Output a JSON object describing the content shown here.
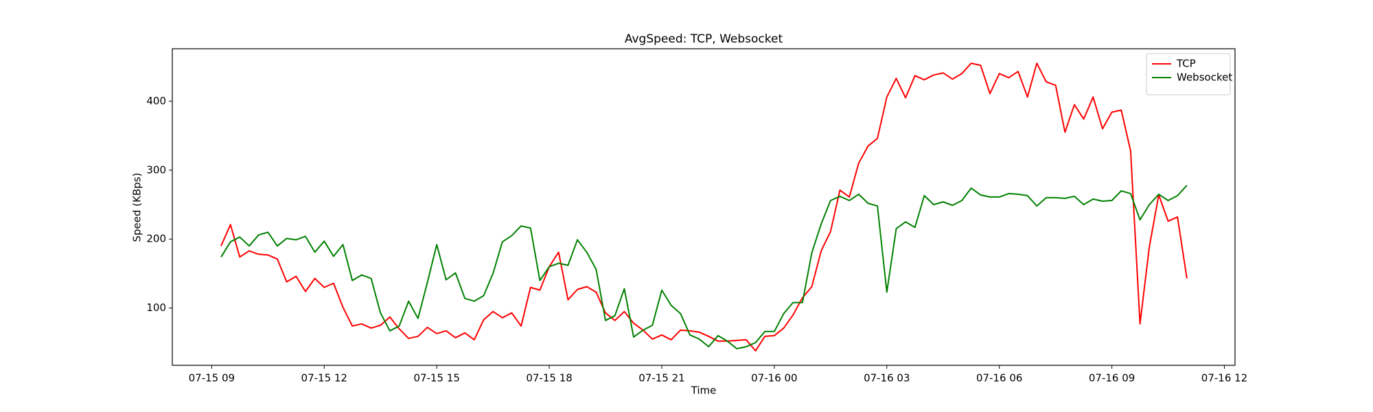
{
  "chart_data": {
    "type": "line",
    "title": "AvgSpeed: TCP, Websocket",
    "x_label": "Time",
    "y_label": "Speed (KBps)",
    "x": [
      "07-15 09:15",
      "07-15 09:30",
      "07-15 09:45",
      "07-15 10:00",
      "07-15 10:15",
      "07-15 10:30",
      "07-15 10:45",
      "07-15 11:00",
      "07-15 11:15",
      "07-15 11:30",
      "07-15 11:45",
      "07-15 12:00",
      "07-15 12:15",
      "07-15 12:30",
      "07-15 12:45",
      "07-15 13:00",
      "07-15 13:15",
      "07-15 13:30",
      "07-15 13:45",
      "07-15 14:00",
      "07-15 14:15",
      "07-15 14:30",
      "07-15 14:45",
      "07-15 15:00",
      "07-15 15:15",
      "07-15 15:30",
      "07-15 15:45",
      "07-15 16:00",
      "07-15 16:15",
      "07-15 16:30",
      "07-15 16:45",
      "07-15 17:00",
      "07-15 17:15",
      "07-15 17:30",
      "07-15 17:45",
      "07-15 18:00",
      "07-15 18:15",
      "07-15 18:30",
      "07-15 18:45",
      "07-15 19:00",
      "07-15 19:15",
      "07-15 19:30",
      "07-15 19:45",
      "07-15 20:00",
      "07-15 20:15",
      "07-15 20:30",
      "07-15 20:45",
      "07-15 21:00",
      "07-15 21:15",
      "07-15 21:30",
      "07-15 21:45",
      "07-15 22:00",
      "07-15 22:15",
      "07-15 22:30",
      "07-15 22:45",
      "07-15 23:00",
      "07-15 23:15",
      "07-15 23:30",
      "07-15 23:45",
      "07-16 00:00",
      "07-16 00:15",
      "07-16 00:30",
      "07-16 00:45",
      "07-16 01:00",
      "07-16 01:15",
      "07-16 01:30",
      "07-16 01:45",
      "07-16 02:00",
      "07-16 02:15",
      "07-16 02:30",
      "07-16 02:45",
      "07-16 03:00",
      "07-16 03:15",
      "07-16 03:30",
      "07-16 03:45",
      "07-16 04:00",
      "07-16 04:15",
      "07-16 04:30",
      "07-16 04:45",
      "07-16 05:00",
      "07-16 05:15",
      "07-16 05:30",
      "07-16 05:45",
      "07-16 06:00",
      "07-16 06:15",
      "07-16 06:30",
      "07-16 06:45",
      "07-16 07:00",
      "07-16 07:15",
      "07-16 07:30",
      "07-16 07:45",
      "07-16 08:00",
      "07-16 08:15",
      "07-16 08:30",
      "07-16 08:45",
      "07-16 09:00",
      "07-16 09:15",
      "07-16 09:30",
      "07-16 09:45",
      "07-16 10:00",
      "07-16 10:15",
      "07-16 10:30",
      "07-16 10:45",
      "07-16 11:00"
    ],
    "series": [
      {
        "name": "TCP",
        "color": "red",
        "values": [
          190,
          221,
          174,
          183,
          178,
          177,
          171,
          138,
          146,
          124,
          143,
          130,
          136,
          101,
          74,
          77,
          71,
          75,
          87,
          70,
          56,
          59,
          72,
          63,
          67,
          57,
          64,
          54,
          83,
          95,
          86,
          93,
          74,
          130,
          126,
          160,
          181,
          112,
          127,
          131,
          123,
          93,
          82,
          95,
          78,
          68,
          55,
          61,
          54,
          68,
          67,
          65,
          59,
          52,
          52,
          53,
          54,
          38,
          59,
          60,
          71,
          90,
          115,
          131,
          183,
          211,
          271,
          261,
          310,
          335,
          346,
          406,
          433,
          405,
          437,
          431,
          438,
          441,
          432,
          440,
          455,
          452,
          411,
          440,
          434,
          443,
          406,
          455,
          428,
          423,
          355,
          395,
          374,
          406,
          360,
          384,
          387,
          328,
          77,
          189,
          264,
          226,
          232,
          143
        ]
      },
      {
        "name": "Websocket",
        "color": "green",
        "values": [
          174,
          196,
          203,
          190,
          206,
          210,
          190,
          201,
          199,
          204,
          181,
          197,
          175,
          192,
          140,
          148,
          143,
          93,
          67,
          74,
          110,
          85,
          137,
          192,
          141,
          151,
          114,
          110,
          118,
          150,
          196,
          205,
          219,
          216,
          140,
          160,
          165,
          162,
          199,
          181,
          156,
          82,
          89,
          128,
          58,
          68,
          75,
          126,
          104,
          92,
          61,
          55,
          44,
          60,
          52,
          41,
          44,
          50,
          66,
          66,
          92,
          108,
          108,
          180,
          222,
          256,
          262,
          256,
          265,
          252,
          248,
          123,
          215,
          225,
          217,
          263,
          250,
          254,
          249,
          256,
          274,
          264,
          261,
          261,
          266,
          265,
          263,
          248,
          260,
          260,
          259,
          262,
          250,
          258,
          255,
          256,
          270,
          266,
          228,
          250,
          265,
          256,
          263,
          278
        ]
      }
    ],
    "xlim": [
      "07-15 07:57",
      "07-16 12:17"
    ],
    "xticks": [
      "07-15 09",
      "07-15 12",
      "07-15 15",
      "07-15 18",
      "07-15 21",
      "07-16 00",
      "07-16 03",
      "07-16 06",
      "07-16 09",
      "07-16 12"
    ],
    "ylim": [
      17,
      476
    ],
    "yticks": [
      100,
      200,
      300,
      400
    ],
    "grid": false,
    "legend": "upper right"
  }
}
